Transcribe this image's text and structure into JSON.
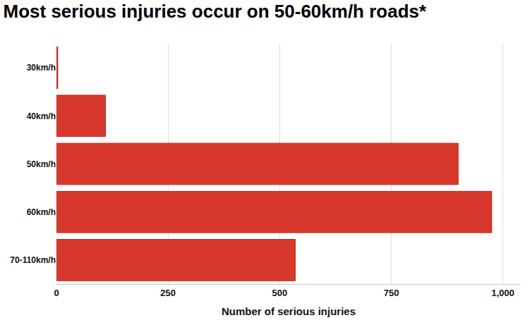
{
  "chart_data": {
    "type": "bar",
    "title": "Most serious injuries occur on 50-60km/h roads*",
    "orientation": "horizontal",
    "categories": [
      "30km/h",
      "40km/h",
      "50km/h",
      "60km/h",
      "70-110km/h"
    ],
    "values": [
      3,
      110,
      900,
      975,
      535
    ],
    "color": "#d8372c",
    "xlabel": "Number of serious injuries",
    "xlim": [
      0,
      1040
    ],
    "xticks": [
      0,
      250,
      500,
      750,
      {
        "value": 1000,
        "label": "1,000"
      }
    ],
    "grid": true
  }
}
